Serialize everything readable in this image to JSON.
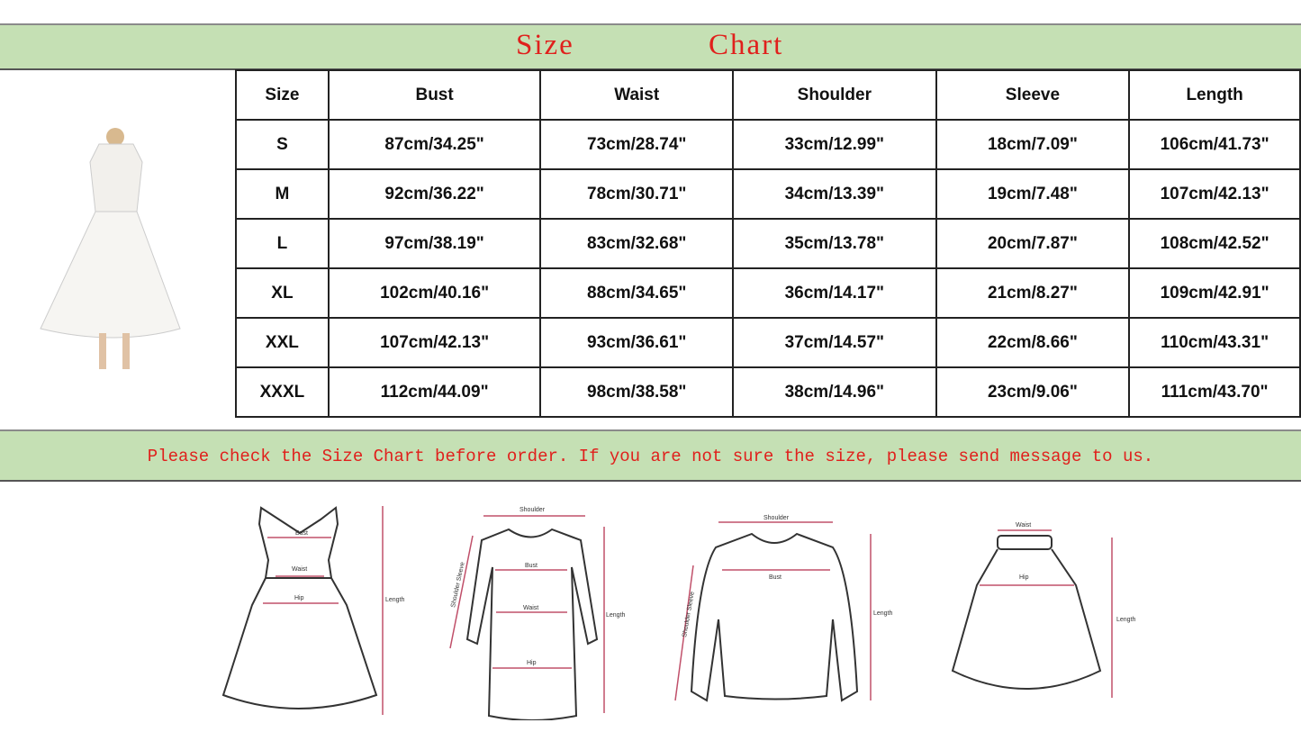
{
  "title": {
    "word1": "Size",
    "word2": "Chart"
  },
  "table": {
    "headers": [
      "Size",
      "Bust",
      "Waist",
      "Shoulder",
      "Sleeve",
      "Length"
    ],
    "rows": [
      [
        "S",
        "87cm/34.25\"",
        "73cm/28.74\"",
        "33cm/12.99\"",
        "18cm/7.09\"",
        "106cm/41.73\""
      ],
      [
        "M",
        "92cm/36.22\"",
        "78cm/30.71\"",
        "34cm/13.39\"",
        "19cm/7.48\"",
        "107cm/42.13\""
      ],
      [
        "L",
        "97cm/38.19\"",
        "83cm/32.68\"",
        "35cm/13.78\"",
        "20cm/7.87\"",
        "108cm/42.52\""
      ],
      [
        "XL",
        "102cm/40.16\"",
        "88cm/34.65\"",
        "36cm/14.17\"",
        "21cm/8.27\"",
        "109cm/42.91\""
      ],
      [
        "XXL",
        "107cm/42.13\"",
        "93cm/36.61\"",
        "37cm/14.57\"",
        "22cm/8.66\"",
        "110cm/43.31\""
      ],
      [
        "XXXL",
        "112cm/44.09\"",
        "98cm/38.58\"",
        "38cm/14.96\"",
        "23cm/9.06\"",
        "111cm/43.70\""
      ]
    ]
  },
  "notice": "Please check the Size Chart before order. If you are not sure the size, please send message to us.",
  "diagrams": {
    "dress": {
      "bust": "Bust",
      "waist": "Waist",
      "hip": "Hip",
      "length": "Length"
    },
    "bodycon": {
      "shoulder": "Shoulder",
      "sleeve": "Shoulder Sleeve",
      "bust": "Bust",
      "waist": "Waist",
      "hip": "Hip",
      "length": "Length"
    },
    "sweater": {
      "shoulder": "Shoulder",
      "sleeve": "Shoulder Sleeve",
      "bust": "Bust",
      "length": "Length"
    },
    "skirt": {
      "waist": "Waist",
      "hip": "Hip",
      "length": "Length"
    }
  },
  "colors": {
    "band": "#c5e0b4",
    "title_text": "#e0201c",
    "measure_line": "#c0506a"
  }
}
